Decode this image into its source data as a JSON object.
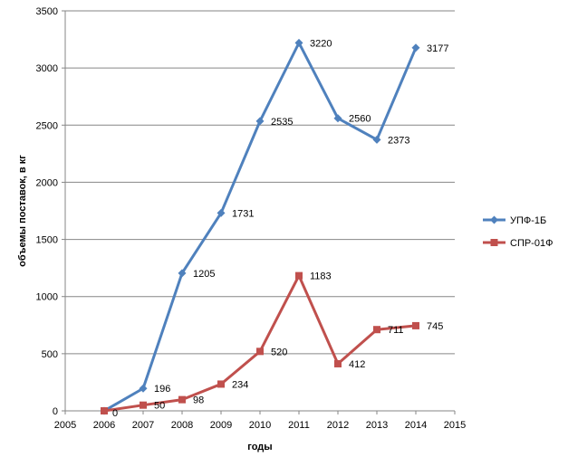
{
  "chart_data": {
    "type": "line",
    "xlabel": "годы",
    "ylabel": "объемы поставок, в кг",
    "xlim": [
      2005,
      2015
    ],
    "ylim": [
      0,
      3500
    ],
    "xticks": [
      "2005",
      "2006",
      "2007",
      "2008",
      "2009",
      "2010",
      "2011",
      "2012",
      "2013",
      "2014",
      "2015"
    ],
    "yticks": [
      "0",
      "500",
      "1000",
      "1500",
      "2000",
      "2500",
      "3000",
      "3500"
    ],
    "grid": "horizontal",
    "legend_position": "right",
    "x": [
      2006,
      2007,
      2008,
      2009,
      2010,
      2011,
      2012,
      2013,
      2014
    ],
    "series": [
      {
        "name": "УПФ-1Б",
        "color": "#4F81BD",
        "marker": "diamond",
        "values": [
          0,
          196,
          1205,
          1731,
          2535,
          3220,
          2560,
          2373,
          3177
        ],
        "labels": [
          "",
          "196",
          "1205",
          "1731",
          "2535",
          "3220",
          "2560",
          "2373",
          "3177"
        ]
      },
      {
        "name": "СПР-01Ф",
        "color": "#C0504D",
        "marker": "square",
        "values": [
          0,
          50,
          98,
          234,
          520,
          1183,
          412,
          711,
          745
        ],
        "labels": [
          "0",
          "50",
          "98",
          "234",
          "520",
          "1183",
          "412",
          "711",
          "745"
        ]
      }
    ]
  }
}
